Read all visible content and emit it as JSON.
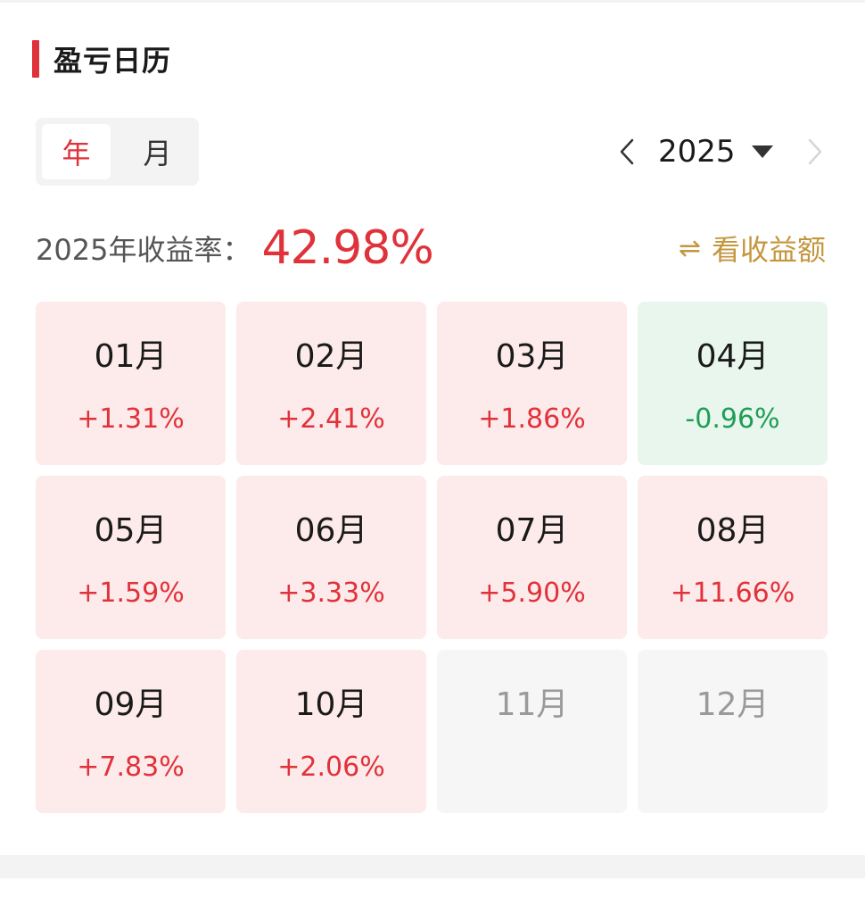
{
  "header": {
    "title": "盈亏日历"
  },
  "period_tabs": [
    {
      "label": "年",
      "active": true
    },
    {
      "label": "月",
      "active": false
    }
  ],
  "year_picker": {
    "year": "2025",
    "prev_icon": "chevron-left-icon",
    "dropdown_icon": "caret-down-icon",
    "next_icon": "chevron-right-icon"
  },
  "summary": {
    "label": "2025年收益率：",
    "value": "42.98%"
  },
  "toggle": {
    "icon": "⇌",
    "label": "看收益额"
  },
  "colors": {
    "red": "#e0323a",
    "green": "#1f9d55",
    "gold": "#c4963e"
  },
  "months": [
    {
      "label": "01月",
      "return": "+1.31%",
      "status": "pos"
    },
    {
      "label": "02月",
      "return": "+2.41%",
      "status": "pos"
    },
    {
      "label": "03月",
      "return": "+1.86%",
      "status": "pos"
    },
    {
      "label": "04月",
      "return": "-0.96%",
      "status": "neg"
    },
    {
      "label": "05月",
      "return": "+1.59%",
      "status": "pos"
    },
    {
      "label": "06月",
      "return": "+3.33%",
      "status": "pos"
    },
    {
      "label": "07月",
      "return": "+5.90%",
      "status": "pos"
    },
    {
      "label": "08月",
      "return": "+11.66%",
      "status": "pos"
    },
    {
      "label": "09月",
      "return": "+7.83%",
      "status": "pos"
    },
    {
      "label": "10月",
      "return": "+2.06%",
      "status": "pos"
    },
    {
      "label": "11月",
      "return": "",
      "status": "none"
    },
    {
      "label": "12月",
      "return": "",
      "status": "none"
    }
  ]
}
